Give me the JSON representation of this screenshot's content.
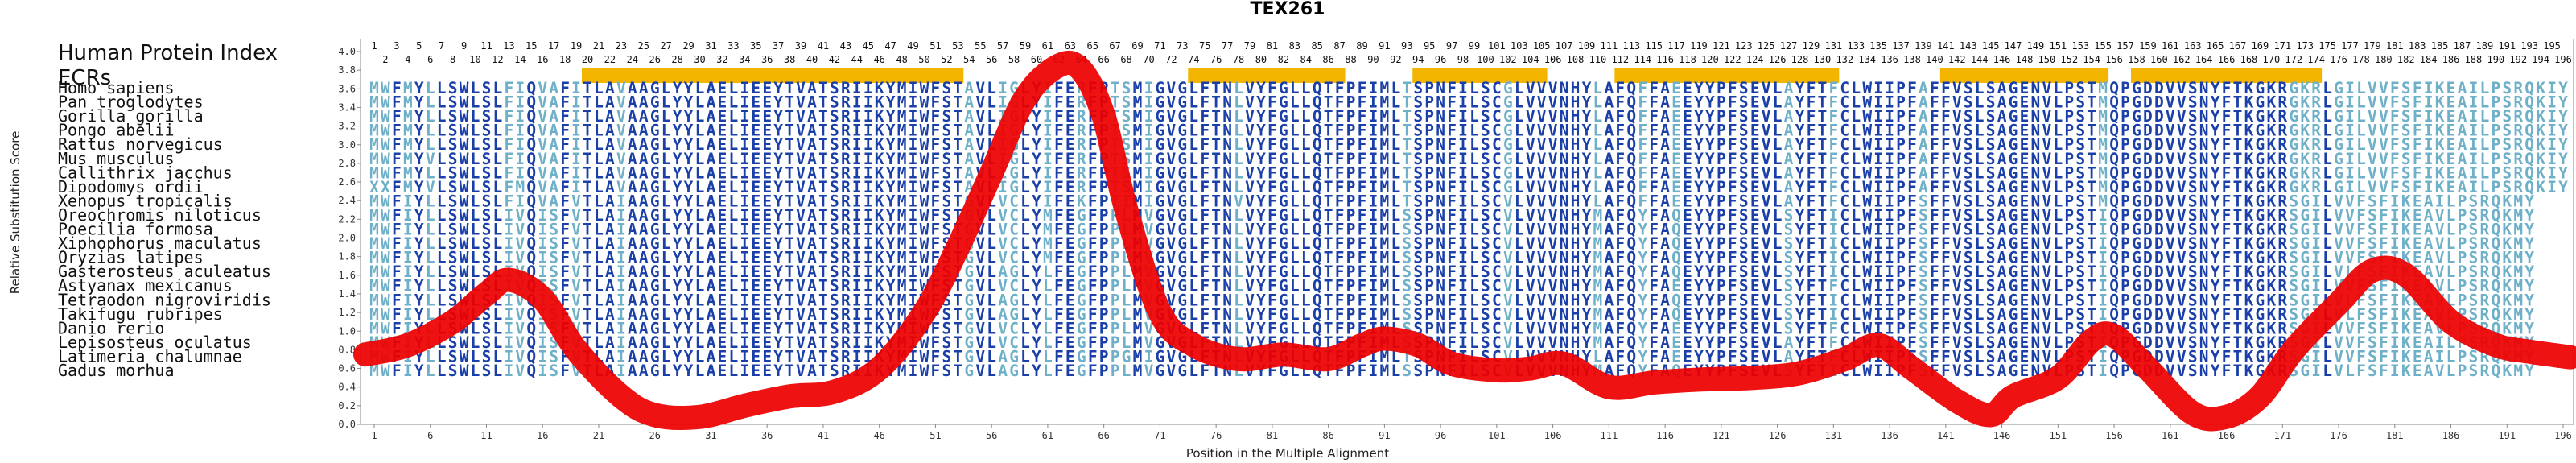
{
  "chart_data": {
    "type": "line",
    "title": "TEX261",
    "xlabel": "Position in the Multiple Alignment",
    "ylabel": "Relative Substitution Score",
    "xlim": [
      1,
      196
    ],
    "ylim": [
      0.0,
      4.0
    ],
    "y_ticks": [
      "0.0",
      "0.2",
      "0.4",
      "0.6",
      "0.8",
      "1.0",
      "1.2",
      "1.4",
      "1.6",
      "1.8",
      "2.0",
      "2.2",
      "2.4",
      "2.6",
      "2.8",
      "3.0",
      "3.2",
      "3.4",
      "3.6",
      "3.8",
      "4.0"
    ],
    "x_ticks": [
      1,
      6,
      11,
      16,
      21,
      26,
      31,
      36,
      41,
      46,
      51,
      56,
      61,
      66,
      71,
      76,
      81,
      86,
      91,
      96,
      101,
      106,
      111,
      116,
      121,
      126,
      131,
      136,
      141,
      146,
      151,
      156,
      161,
      166,
      171,
      176,
      181,
      186,
      191,
      196
    ],
    "human_index_top": [
      1,
      3,
      5,
      7,
      9,
      11,
      13,
      15,
      17,
      19,
      21,
      23,
      25,
      27,
      29,
      31,
      33,
      35,
      37,
      39,
      41,
      43,
      45,
      47,
      49,
      51,
      53,
      55,
      57,
      59,
      61,
      63,
      65,
      67,
      69,
      71,
      73,
      75,
      77,
      79,
      81,
      83,
      85,
      87,
      89,
      91,
      93,
      95,
      97,
      99,
      101,
      103,
      105,
      107,
      109,
      111,
      113,
      115,
      117,
      119,
      121,
      123,
      125,
      127,
      129,
      131,
      133,
      135,
      137,
      139,
      141,
      143,
      145,
      147,
      149,
      151,
      153,
      155,
      157,
      159,
      161,
      163,
      165,
      167,
      169,
      171,
      173,
      175,
      177,
      179,
      181,
      183,
      185,
      187,
      189,
      191,
      193,
      195
    ],
    "human_index_bottom": [
      2,
      4,
      6,
      8,
      10,
      12,
      14,
      16,
      18,
      20,
      22,
      24,
      26,
      28,
      30,
      32,
      34,
      36,
      38,
      40,
      42,
      44,
      46,
      48,
      50,
      52,
      54,
      56,
      58,
      60,
      62,
      64,
      66,
      68,
      70,
      72,
      74,
      76,
      78,
      80,
      82,
      84,
      86,
      88,
      90,
      92,
      94,
      96,
      98,
      100,
      102,
      104,
      106,
      108,
      110,
      112,
      114,
      116,
      118,
      120,
      122,
      124,
      126,
      128,
      130,
      132,
      134,
      136,
      138,
      140,
      142,
      144,
      146,
      148,
      150,
      152,
      154,
      156,
      158,
      160,
      162,
      164,
      166,
      168,
      170,
      172,
      174,
      176,
      178,
      180,
      182,
      184,
      186,
      188,
      190,
      192,
      194,
      196
    ],
    "row_labels": {
      "human_index": "Human Protein Index",
      "ecrs": "ECRs"
    },
    "ecr_segments": [
      [
        20,
        53
      ],
      [
        74,
        87
      ],
      [
        94,
        105
      ],
      [
        112,
        131
      ],
      [
        141,
        155
      ],
      [
        158,
        174
      ]
    ],
    "line": {
      "name": "Relative Substitution Score",
      "color": "#ee0000",
      "points": [
        [
          1,
          0.75
        ],
        [
          4,
          0.85
        ],
        [
          8,
          1.1
        ],
        [
          11,
          1.4
        ],
        [
          13,
          1.55
        ],
        [
          16,
          1.35
        ],
        [
          19,
          0.8
        ],
        [
          23,
          0.3
        ],
        [
          26,
          0.1
        ],
        [
          30,
          0.08
        ],
        [
          34,
          0.2
        ],
        [
          38,
          0.3
        ],
        [
          42,
          0.35
        ],
        [
          46,
          0.6
        ],
        [
          50,
          1.2
        ],
        [
          53,
          1.9
        ],
        [
          56,
          2.7
        ],
        [
          59,
          3.5
        ],
        [
          62,
          3.85
        ],
        [
          64,
          3.8
        ],
        [
          66,
          3.3
        ],
        [
          68,
          2.3
        ],
        [
          71,
          1.2
        ],
        [
          74,
          0.85
        ],
        [
          78,
          0.7
        ],
        [
          82,
          0.75
        ],
        [
          86,
          0.7
        ],
        [
          89,
          0.85
        ],
        [
          91,
          0.92
        ],
        [
          94,
          0.85
        ],
        [
          97,
          0.65
        ],
        [
          101,
          0.58
        ],
        [
          104,
          0.6
        ],
        [
          107,
          0.65
        ],
        [
          111,
          0.4
        ],
        [
          115,
          0.45
        ],
        [
          119,
          0.48
        ],
        [
          124,
          0.5
        ],
        [
          128,
          0.55
        ],
        [
          132,
          0.7
        ],
        [
          135,
          0.85
        ],
        [
          138,
          0.6
        ],
        [
          142,
          0.25
        ],
        [
          145,
          0.1
        ],
        [
          147,
          0.3
        ],
        [
          151,
          0.5
        ],
        [
          154,
          0.9
        ],
        [
          156,
          0.95
        ],
        [
          159,
          0.6
        ],
        [
          163,
          0.12
        ],
        [
          166,
          0.08
        ],
        [
          169,
          0.3
        ],
        [
          172,
          0.8
        ],
        [
          176,
          1.3
        ],
        [
          179,
          1.65
        ],
        [
          182,
          1.6
        ],
        [
          186,
          1.1
        ],
        [
          190,
          0.85
        ],
        [
          193,
          0.78
        ],
        [
          196,
          0.72
        ]
      ]
    },
    "species": [
      "Homo sapiens",
      "Pan troglodytes",
      "Gorilla gorilla",
      "Pongo abelii",
      "Rattus norvegicus",
      "Mus musculus",
      "Callithrix jacchus",
      "Dipodomys ordii",
      "Xenopus tropicalis",
      "Oreochromis niloticus",
      "Poecilia formosa",
      "Xiphophorus maculatus",
      "Oryzias latipes",
      "Gasterosteus aculeatus",
      "Astyanax mexicanus",
      "Tetraodon nigroviridis",
      "Takifugu rubripes",
      "Danio rerio",
      "Lepisosteus oculatus",
      "Latimeria chalumnae",
      "Gadus morhua"
    ],
    "sequences": [
      "MWFMYLLSWLSLFIQVAFITLAVAAGLYYLAELIEEYTVATSRIIKYMIWFSTAVLIGLYIFERFPTSMIGVGLFTNLVYFGLLQTFPFIMLTSPNFILSCGLVVVNHYLAFQFFAEEYYPFSEVLAYFTFCLWIIPFAFFVSLSAGENVLPSTMQPGDDVVSNYFTKGKRGKRLGILVVFSFIKEAILPSRQKIY",
      "MWFMYLLSWLSLFIQVAFITLAVAAGLYYLAELIEEYTVATSRIIKYMIWFSTAVLIGLYIFERFPTSMIGVGLFTNLVYFGLLQTFPFIMLTSPNFILSCGLVVVNHYLAFQFFAEEYYPFSEVLAYFTFCLWIIPFAFFVSLSAGENVLPSTMQPGDDVVSNYFTKGKRGKRLGILVVFSFIKEAILPSRQKIY",
      "MWFMYLLSWLSLFIQVAFITLAVAAGLYYLAELIEEYTVATSRIIKYMIWFSTAVLIGLYIFERFPTSMIGVGLFTNLVYFGLLQTFPFIMLTSPNFILSCGLVVVNHYLAFQFFAEEYYPFSEVLAYFTFCLWIIPFAFFVSLSAGENVLPSTMQPGDDVVSNYFTKGKRGKRLGILVVFSFIKEAILPSRQKIY",
      "MWFMYLLSWLSLFIQVAFITLAVAAGLYYLAELIEEYTVATSRIIKYMIWFSTAVLIGLYIFERFPTSMIGVGLFTNLVYFGLLQTFPFIMLTSPNFILSCGLVVVNHYLAFQFFAEEYYPFSEVLAYFTFCLWIIPFAFFVSLSAGENVLPSTMQPGDDVVSNYFTKGKRGKRLGILVVFSFIKEAILPSRQKIY",
      "MWFMYLLSWLSLFIQVAFITLAVAAGLYYLAELIEEYTVATSRIIKYMIWFSTAVLIGLYIFERFPTSMIGVGLFTNLVYFGLLQTFPFIMLTSPNFILSCGLVVVNHYLAFQFFAEEYYPFSEVLAYFTFCLWIIPFAFFVSLSAGENVLPSTMQPGDDVVSNYFTKGKRGKRLGILVVFSFIKEAILPSRQKIY",
      "MWFMYVLSWLSLFIQVAFITLAVAAGLYYLAELIEEYTVATSRIIKYMIWFSTAVLIGLYIFERFPTSMIGVGLFTNLVYFGLLQTFPFIMLTSPNFILSCGLVVVNHYLAFQFFAEEYYPFSEVLAYFTFCLWIIPFAFFVSLSAGENVLPSTMQPGDDVVSNYFTKGKRGKRLGILVVFSFIKEAILPSRQKIY",
      "MWFMYLLSWLSLFIQVAFITLAVAAGLYYLAELIEEYTVATSRIIKYMIWFSTAVLIGLYIFERFPTSMIGVGLFTNLVYFGLLQTFPFIMLTSPNFILSCGLVVVNHYLAFQFFAEEYYPFSEVLAYFTFCLWIIPFAFFVSLSAGENVLPSTMQPGDDVVSNYFTKGKRGKRLGILVVFSFIKEAILPSRQKIY",
      "XXFMYVLSWLSLFMQVAFITLAVAAGLYYLAELIEEYTVATSRIIKYMIWFSTAVLIGLYIFERFPTSMIGVGLFTNLVYFGLLQTFPFIMLTSPNFILSCGLVVVNHYLAFQFFAEEYYPFSEVLAYFTFCLWIIPFAFFVSLSAGENVLPSTMQPGDDVVSNYFTKGKRGKRLGILVVFSFIKEAILPSRQKIY",
      "MWFIYLLSWLSLFIQVAFVTLAIAAGLYYLAELIEEYTVATSRIIKYMIWFSTGVLVCLYIFEKFPTIMIGVGLFTNVVYFGLLQTFPFIMLTSPNFILSCVLVVVNHYLAFQFFAEEYYPFSEVLAYFTFCLWIIPFSFFVSLSAGENVLPSTMQPGDDVVSNYFTKGKRSGILVVFSFIKEAILPSRQKMY",
      "MWFIYLLSWLSLIVQISFVTLAIAAGLYYLAELIEEYTVATSRIIKYMIWFSTGVLVCLYMFEGFPPLMVGVGLFTNLVYFGLLQTFPFIMLSSPNFILSCVLVVVNHYMAFQYFAQEYYPFSEVLSYFTICLWIIPFSFFVSLSAGENVLPSTIQPGDDVVSNYFTKGKRSGILVVFSFIKEAVLPSRQKMY",
      "MWFIYLLSWLSLIVQISFVTLAIAAGLYYLAELIEEYTVATSRIIKYMIWFSTGVLVCLYMFEGFPPLMVGVGLFTNLVYFGLLQTFPFIMLSSPNFILSCVLVVVNHYMAFQYFAQEYYPFSEVLSYFTICLWIIPFSFFVSLSAGENVLPSTIQPGDDVVSNYFTKGKRSGILVVFSFIKEAVLPSRQKMY",
      "MWFIYLLSWLSLIVQISFVTLAIAAGLYYLAELIEEYTVATSRIIKYMIWFSTGVLVCLYMFEGFPPLMVGVGLFTNLVYFGLLQTFPFIMLSSPNFILSCVLVVVNHYMAFQYFAQEYYPFSEVLSYFTICLWIIPFSFFVSLSAGENVLPSTIQPGDDVVSNYFTKGKRSGILVVFSFIKEAVLPSRQKMY",
      "MWFIYLLSWLSLIVQISFVTLAIAAGLYYLAELIEEYTVATSRIIKYMIWFSTGVLVCLYMFEGFPPLMVGVGLFTNLVYFGLLQTFPFIMLSSPNFILSCVLVVVNHYMAFQYFAQEYYPFSEVLSYFTICLWIIPFSFFVSLSAGENVLPSTIQPGDDVVSNYFTKGKRSGILVVFSFIKEAVLPSRQKMY",
      "MWFIYLLSWLSLIVQISFVTLAIAAGLYYLAELIEEYTVATSRIIKYMIWFSTGVLAGLYLFEGFPPLMVGVGLFTNLVYFGLLQTFPFIMLSSPNFILSCVLVVVNHYMAFQYFAQEYYPFSEVLSYFTICLWIIPFSFFVSLSAGENVLPSTIQPGDDVVSNYFTKGKRSGILVLFSFIKEAVLPSRQKMY",
      "MWFIYLLSWLSLIVQISFVTLAIAAGLYYLAELIEEYTVATSRIIKYMIWFSTGVLVCLYLFEGFPPLMVGVGLFTNLVYFGLLQTFPFIMLSSPNFILSCVLVVVNHYMAFQYFAEEYYPFSEVLSYFTFCLWIIPFSFFVSLSAGENVLPSTIQPGDDVVSNYFTKGKRSGILVVFSFIKEAVLPSRQKMY",
      "MWFIYLLSWLSLIVQISFVTLAIAAGLYYLAELIEEYTVATSRIIKYMIWFSTGVLAGLYLFEGFPPLMVGVGLFTNLVYFGLLQTFPFIMLSSPNFILSCVLVVVNHYMAFQYFAQEYYPFSEVLSYFTICLWIIPFSFFVSLSAGENVLPSTIQPGDDVVSNYFTKGKRSGILVLFSFIKEAVLPSRQKMY",
      "MWFIYLLSWLSLIVQISFVTLAIAAGLYYLAELIEEYTVATSRIIKYMIWFSTGVLAGLYLFEGFPPLMVGVGLFTNLVYFGLLQTFPFIMLSSPNFILSCVLVVVNHYMAFQYFAQEYYPFSEVLSYFTICLWIIPFSFFVSLSAGENVLPSTIQPGDDVVSNYFTKGKRSGILVLFSFIKEAVLPSRQKMY",
      "MWFIYLLSWLSLIVQISFVTLAIAAGLYYLAELIEEYTVATSRIIKYMIWFSTGVLVCLYLFEGFPPLMVGVGLFTNLVYFGLLQTFPFIMLSSPNFILSCVLVVVNHYMAFQYFAEEYYPFSEVLSYFTFCLWIIPFSFFVSLSAGENVLPSTIQPGDDVVSNYFTKGKRSGILVVFSFIKEAVLPSRQKMY",
      "MWFIYLLSWLSLIVQISFVTLAIAAGLYYLAELIEEYTVATSRIIKYMIWFSTGVLVCLYLFEGFPPLMVGVGLFTNLVYFGLLQTFPFIMLSSPNFILSCVLVVVNHYMAFQYFAEEYYPFSEVLAYFTFCLWIIPFSFFVSLSAGENVLPSTIQPGDDVVSNYFTKGKRSGILVVFSFIKEAILPSRQKMY",
      "MWFIYLLSWLSLIVQISFVTLAIAAGLYYLAELIEEYTVATSRIIKYMIWFSTGVLAGLYLFEGFPPGMIGVGLFTNLVYFGLLQTFPFIMLTSPNFILSCVLVVVNHYLAFQYFAEEYYPFSEVLAYFTFCLWIIPFSFFVSLSAGENVLPSTIQPGDDVVSNYFTKGKRSGILVVFSFIKEAILPSRQKMY",
      "MWFIYLLSWLSLIVQISFVTLAIAAGLYYLAELIEEYTVATSRIIKYMIWFSTGVLAGLYLFEGFPPLMVGVGLFTNLVYFGLLQTFPFIMLSSPNFILSCVLVVVNHYMAFQYFAQEYYPFSEVLSYFTICLWIIPFSFFVSLSAGENVLPSTIQPGDDVVSNYFTKGKRSGILVLFSFIKEAVLPSRQKMY"
    ],
    "colors": {
      "conserved": "#1a3fa8",
      "variable": "#6fb0c9",
      "ecr_bar": "#f3b500",
      "line": "#ee0000",
      "axis": "#888888"
    }
  }
}
